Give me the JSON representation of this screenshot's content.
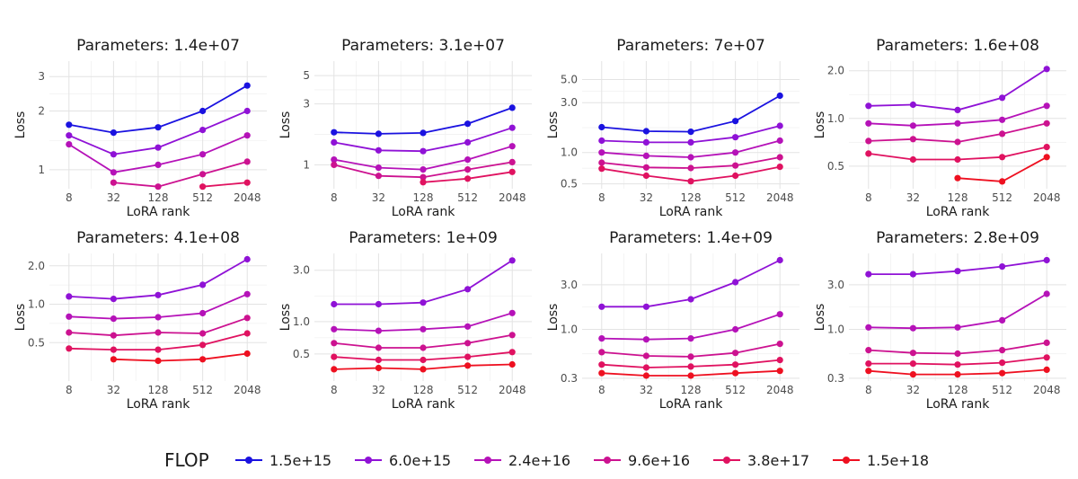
{
  "chart_data": [
    {
      "type": "line",
      "title": "Parameters: 1.4e+07",
      "xlabel": "LoRA rank",
      "ylabel": "Loss",
      "x": [
        8,
        32,
        128,
        512,
        2048
      ],
      "xticks": [
        "8",
        "32",
        "128",
        "512",
        "2048"
      ],
      "ylim": [
        0.8,
        3.6
      ],
      "yticks": [
        1,
        2,
        3
      ],
      "ytick_labels": [
        "1",
        "2",
        "3"
      ],
      "yscale": "log",
      "series": [
        {
          "name": "1.5e+15",
          "values": [
            1.7,
            1.55,
            1.65,
            2.0,
            2.7
          ]
        },
        {
          "name": "6.0e+15",
          "values": [
            1.5,
            1.2,
            1.3,
            1.6,
            2.0
          ]
        },
        {
          "name": "2.4e+16",
          "values": [
            1.35,
            0.97,
            1.06,
            1.2,
            1.5
          ]
        },
        {
          "name": "9.6e+16",
          "values": [
            null,
            0.86,
            0.82,
            0.95,
            1.1
          ]
        },
        {
          "name": "3.8e+17",
          "values": [
            null,
            null,
            null,
            0.82,
            0.86
          ]
        },
        {
          "name": "1.5e+18",
          "values": [
            null,
            null,
            null,
            null,
            null
          ]
        }
      ]
    },
    {
      "type": "line",
      "title": "Parameters: 3.1e+07",
      "xlabel": "LoRA rank",
      "ylabel": "Loss",
      "x": [
        8,
        32,
        128,
        512,
        2048
      ],
      "xticks": [
        "8",
        "32",
        "128",
        "512",
        "2048"
      ],
      "ylim": [
        0.65,
        6.5
      ],
      "yticks": [
        1,
        3,
        5
      ],
      "ytick_labels": [
        "1",
        "3",
        "5"
      ],
      "yscale": "log",
      "series": [
        {
          "name": "1.5e+15",
          "values": [
            1.8,
            1.75,
            1.78,
            2.1,
            2.8
          ]
        },
        {
          "name": "6.0e+15",
          "values": [
            1.5,
            1.3,
            1.28,
            1.5,
            1.95
          ]
        },
        {
          "name": "2.4e+16",
          "values": [
            1.1,
            0.95,
            0.92,
            1.1,
            1.4
          ]
        },
        {
          "name": "9.6e+16",
          "values": [
            1.0,
            0.82,
            0.8,
            0.92,
            1.05
          ]
        },
        {
          "name": "3.8e+17",
          "values": [
            null,
            null,
            0.73,
            0.78,
            0.88
          ]
        },
        {
          "name": "1.5e+18",
          "values": [
            null,
            null,
            null,
            null,
            null
          ]
        }
      ]
    },
    {
      "type": "line",
      "title": "Parameters: 7e+07",
      "xlabel": "LoRA rank",
      "ylabel": "Loss",
      "x": [
        8,
        32,
        128,
        512,
        2048
      ],
      "xticks": [
        "8",
        "32",
        "128",
        "512",
        "2048"
      ],
      "ylim": [
        0.45,
        7.5
      ],
      "yticks": [
        0.5,
        1.0,
        3.0,
        5.0
      ],
      "ytick_labels": [
        "0.5",
        "1.0",
        "3.0",
        "5.0"
      ],
      "yscale": "log",
      "series": [
        {
          "name": "1.5e+15",
          "values": [
            1.75,
            1.6,
            1.58,
            2.0,
            3.5
          ]
        },
        {
          "name": "6.0e+15",
          "values": [
            1.3,
            1.25,
            1.25,
            1.4,
            1.8
          ]
        },
        {
          "name": "2.4e+16",
          "values": [
            1.0,
            0.93,
            0.9,
            1.0,
            1.3
          ]
        },
        {
          "name": "9.6e+16",
          "values": [
            0.8,
            0.72,
            0.71,
            0.75,
            0.9
          ]
        },
        {
          "name": "3.8e+17",
          "values": [
            0.7,
            0.6,
            0.53,
            0.6,
            0.73
          ]
        },
        {
          "name": "1.5e+18",
          "values": [
            null,
            null,
            null,
            null,
            null
          ]
        }
      ]
    },
    {
      "type": "line",
      "title": "Parameters: 1.6e+08",
      "xlabel": "LoRA rank",
      "ylabel": "Loss",
      "x": [
        8,
        32,
        128,
        512,
        2048
      ],
      "xticks": [
        "8",
        "32",
        "128",
        "512",
        "2048"
      ],
      "ylim": [
        0.36,
        2.3
      ],
      "yticks": [
        0.5,
        1.0,
        2.0
      ],
      "ytick_labels": [
        "0.5",
        "1.0",
        "2.0"
      ],
      "yscale": "log",
      "series": [
        {
          "name": "1.5e+15",
          "values": [
            null,
            null,
            null,
            null,
            null
          ]
        },
        {
          "name": "6.0e+15",
          "values": [
            1.2,
            1.22,
            1.13,
            1.35,
            2.05
          ]
        },
        {
          "name": "2.4e+16",
          "values": [
            0.93,
            0.9,
            0.93,
            0.98,
            1.2
          ]
        },
        {
          "name": "9.6e+16",
          "values": [
            0.72,
            0.74,
            0.71,
            0.8,
            0.93
          ]
        },
        {
          "name": "3.8e+17",
          "values": [
            0.6,
            0.55,
            0.55,
            0.57,
            0.66
          ]
        },
        {
          "name": "1.5e+18",
          "values": [
            null,
            null,
            0.42,
            0.4,
            0.57
          ]
        }
      ]
    },
    {
      "type": "line",
      "title": "Parameters: 4.1e+08",
      "xlabel": "LoRA rank",
      "ylabel": "Loss",
      "x": [
        8,
        32,
        128,
        512,
        2048
      ],
      "xticks": [
        "8",
        "32",
        "128",
        "512",
        "2048"
      ],
      "ylim": [
        0.25,
        2.5
      ],
      "yticks": [
        0.5,
        1.0,
        2.0
      ],
      "ytick_labels": [
        "0.5",
        "1.0",
        "2.0"
      ],
      "yscale": "log",
      "series": [
        {
          "name": "1.5e+15",
          "values": [
            null,
            null,
            null,
            null,
            null
          ]
        },
        {
          "name": "6.0e+15",
          "values": [
            1.15,
            1.1,
            1.18,
            1.42,
            2.25
          ]
        },
        {
          "name": "2.4e+16",
          "values": [
            0.8,
            0.77,
            0.79,
            0.85,
            1.2
          ]
        },
        {
          "name": "9.6e+16",
          "values": [
            0.6,
            0.57,
            0.6,
            0.59,
            0.78
          ]
        },
        {
          "name": "3.8e+17",
          "values": [
            0.45,
            0.44,
            0.44,
            0.48,
            0.59
          ]
        },
        {
          "name": "1.5e+18",
          "values": [
            null,
            0.37,
            0.36,
            0.37,
            0.41
          ]
        }
      ]
    },
    {
      "type": "line",
      "title": "Parameters: 1e+09",
      "xlabel": "LoRA rank",
      "ylabel": "Loss",
      "x": [
        8,
        32,
        128,
        512,
        2048
      ],
      "xticks": [
        "8",
        "32",
        "128",
        "512",
        "2048"
      ],
      "ylim": [
        0.28,
        4.3
      ],
      "yticks": [
        0.5,
        1.0,
        3.0
      ],
      "ytick_labels": [
        "0.5",
        "1.0",
        "3.0"
      ],
      "yscale": "log",
      "series": [
        {
          "name": "1.5e+15",
          "values": [
            null,
            null,
            null,
            null,
            null
          ]
        },
        {
          "name": "6.0e+15",
          "values": [
            1.45,
            1.45,
            1.5,
            2.0,
            3.7
          ]
        },
        {
          "name": "2.4e+16",
          "values": [
            0.85,
            0.82,
            0.85,
            0.9,
            1.2
          ]
        },
        {
          "name": "9.6e+16",
          "values": [
            0.63,
            0.57,
            0.57,
            0.63,
            0.75
          ]
        },
        {
          "name": "3.8e+17",
          "values": [
            0.47,
            0.44,
            0.44,
            0.47,
            0.52
          ]
        },
        {
          "name": "1.5e+18",
          "values": [
            0.36,
            0.37,
            0.36,
            0.39,
            0.4
          ]
        }
      ]
    },
    {
      "type": "line",
      "title": "Parameters: 1.4e+09",
      "xlabel": "LoRA rank",
      "ylabel": "Loss",
      "x": [
        8,
        32,
        128,
        512,
        2048
      ],
      "xticks": [
        "8",
        "32",
        "128",
        "512",
        "2048"
      ],
      "ylim": [
        0.28,
        6.5
      ],
      "yticks": [
        0.3,
        1.0,
        3.0
      ],
      "ytick_labels": [
        "0.3",
        "1.0",
        "3.0"
      ],
      "yscale": "log",
      "series": [
        {
          "name": "1.5e+15",
          "values": [
            null,
            null,
            null,
            null,
            null
          ]
        },
        {
          "name": "6.0e+15",
          "values": [
            1.75,
            1.75,
            2.1,
            3.2,
            5.5
          ]
        },
        {
          "name": "2.4e+16",
          "values": [
            0.8,
            0.78,
            0.8,
            1.0,
            1.45
          ]
        },
        {
          "name": "9.6e+16",
          "values": [
            0.57,
            0.52,
            0.51,
            0.56,
            0.7
          ]
        },
        {
          "name": "3.8e+17",
          "values": [
            0.42,
            0.39,
            0.4,
            0.42,
            0.47
          ]
        },
        {
          "name": "1.5e+18",
          "values": [
            0.34,
            0.32,
            0.32,
            0.34,
            0.36
          ]
        }
      ]
    },
    {
      "type": "line",
      "title": "Parameters: 2.8e+09",
      "xlabel": "LoRA rank",
      "ylabel": "Loss",
      "x": [
        8,
        32,
        128,
        512,
        2048
      ],
      "xticks": [
        "8",
        "32",
        "128",
        "512",
        "2048"
      ],
      "ylim": [
        0.28,
        6.5
      ],
      "yticks": [
        0.3,
        1.0,
        3.0
      ],
      "ytick_labels": [
        "0.3",
        "1.0",
        "3.0"
      ],
      "yscale": "log",
      "series": [
        {
          "name": "1.5e+15",
          "values": [
            null,
            null,
            null,
            null,
            null
          ]
        },
        {
          "name": "6.0e+15",
          "values": [
            3.9,
            3.9,
            4.2,
            4.7,
            5.5
          ]
        },
        {
          "name": "2.4e+16",
          "values": [
            1.05,
            1.03,
            1.05,
            1.25,
            2.4
          ]
        },
        {
          "name": "9.6e+16",
          "values": [
            0.6,
            0.56,
            0.55,
            0.6,
            0.72
          ]
        },
        {
          "name": "3.8e+17",
          "values": [
            0.43,
            0.43,
            0.42,
            0.44,
            0.5
          ]
        },
        {
          "name": "1.5e+18",
          "values": [
            0.36,
            0.33,
            0.33,
            0.34,
            0.37
          ]
        }
      ]
    }
  ],
  "legend": {
    "title": "FLOP",
    "items": [
      {
        "label": "1.5e+15",
        "color": "#1a12e0"
      },
      {
        "label": "6.0e+15",
        "color": "#8f12d6"
      },
      {
        "label": "2.4e+16",
        "color": "#b512b8"
      },
      {
        "label": "9.6e+16",
        "color": "#cc1290"
      },
      {
        "label": "3.8e+17",
        "color": "#e01260"
      },
      {
        "label": "1.5e+18",
        "color": "#ee1020"
      }
    ]
  }
}
